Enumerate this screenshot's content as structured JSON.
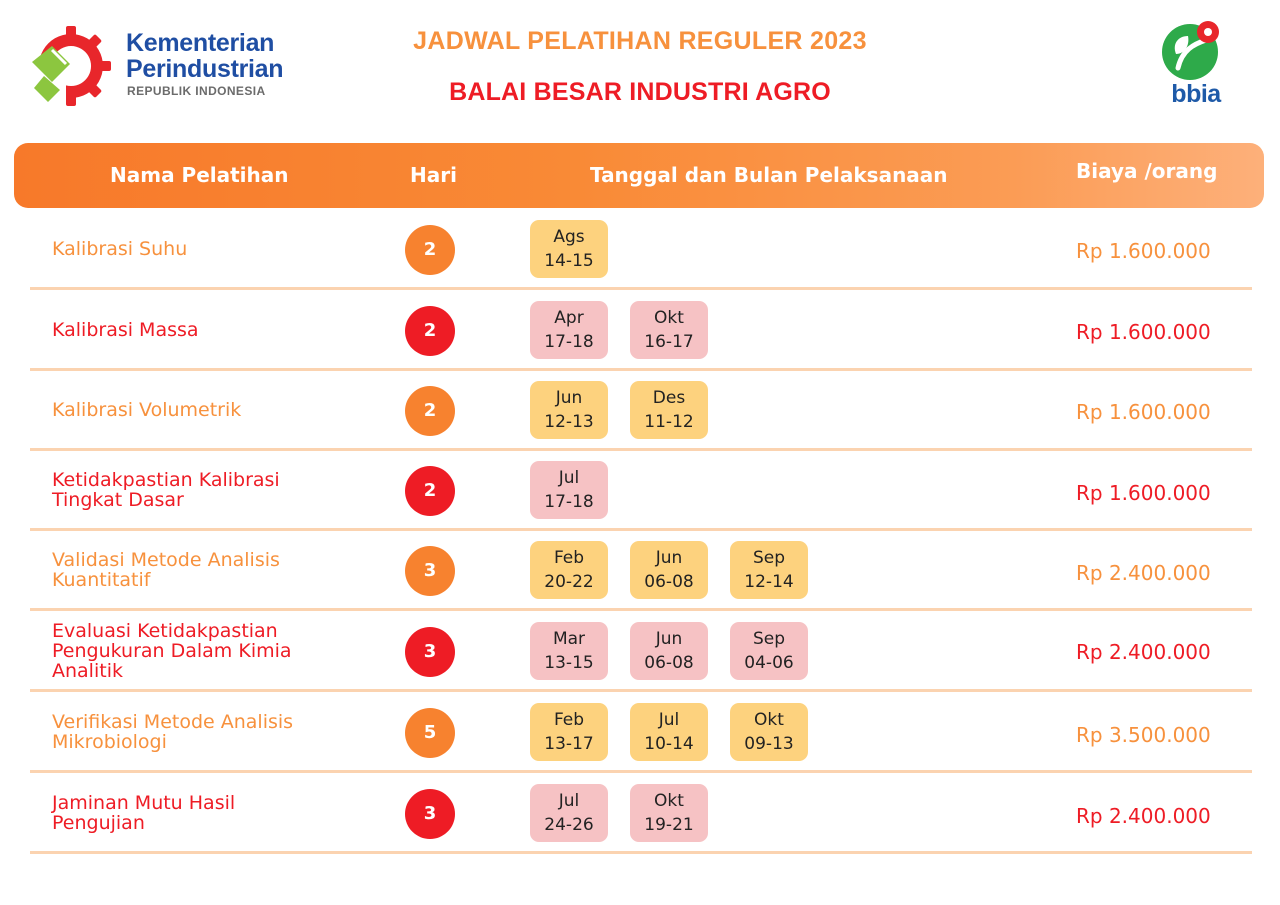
{
  "header": {
    "ministry_line1": "Kementerian",
    "ministry_line2": "Perindustrian",
    "ministry_line3": "REPUBLIK INDONESIA",
    "title": "JADWAL PELATIHAN REGULER 2023",
    "subtitle": "BALAI BESAR INDUSTRI AGRO",
    "right_logo_text": "bbia"
  },
  "colors": {
    "orange": "#f7913d",
    "red": "#ee1c25",
    "chip_orange": "#fdd27e",
    "chip_red": "#f6c2c4",
    "ministry_blue": "#1f4ea3"
  },
  "table": {
    "columns": [
      "Nama Pelatihan",
      "Hari",
      "Tanggal dan Bulan Pelaksanaan",
      "Biaya /orang"
    ],
    "rows": [
      {
        "name_lines": [
          "Kalibrasi Suhu"
        ],
        "days": "2",
        "style": "orange",
        "dates": [
          {
            "month": "Ags",
            "range": "14-15"
          }
        ],
        "price": "Rp 1.600.000"
      },
      {
        "name_lines": [
          "Kalibrasi Massa"
        ],
        "days": "2",
        "style": "red",
        "dates": [
          {
            "month": "Apr",
            "range": "17-18"
          },
          {
            "month": "Okt",
            "range": "16-17"
          }
        ],
        "price": "Rp 1.600.000"
      },
      {
        "name_lines": [
          "Kalibrasi Volumetrik"
        ],
        "days": "2",
        "style": "orange",
        "dates": [
          {
            "month": "Jun",
            "range": "12-13"
          },
          {
            "month": "Des",
            "range": "11-12"
          }
        ],
        "price": "Rp 1.600.000"
      },
      {
        "name_lines": [
          "Ketidakpastian Kalibrasi",
          "Tingkat Dasar"
        ],
        "days": "2",
        "style": "red",
        "dates": [
          {
            "month": "Jul",
            "range": "17-18"
          }
        ],
        "price": "Rp 1.600.000"
      },
      {
        "name_lines": [
          "Validasi Metode Analisis",
          "Kuantitatif"
        ],
        "days": "3",
        "style": "orange",
        "dates": [
          {
            "month": "Feb",
            "range": "20-22"
          },
          {
            "month": "Jun",
            "range": "06-08"
          },
          {
            "month": "Sep",
            "range": "12-14"
          }
        ],
        "price": "Rp 2.400.000"
      },
      {
        "name_lines": [
          "Evaluasi Ketidakpastian",
          "Pengukuran Dalam Kimia",
          "Analitik"
        ],
        "days": "3",
        "style": "red",
        "dates": [
          {
            "month": "Mar",
            "range": "13-15"
          },
          {
            "month": "Jun",
            "range": "06-08"
          },
          {
            "month": "Sep",
            "range": "04-06"
          }
        ],
        "price": "Rp 2.400.000"
      },
      {
        "name_lines": [
          "Verifikasi Metode Analisis",
          "Mikrobiologi"
        ],
        "days": "5",
        "style": "orange",
        "dates": [
          {
            "month": "Feb",
            "range": "13-17"
          },
          {
            "month": "Jul",
            "range": "10-14"
          },
          {
            "month": "Okt",
            "range": "09-13"
          }
        ],
        "price": "Rp 3.500.000"
      },
      {
        "name_lines": [
          "Jaminan Mutu Hasil",
          "Pengujian"
        ],
        "days": "3",
        "style": "red",
        "dates": [
          {
            "month": "Jul",
            "range": "24-26"
          },
          {
            "month": "Okt",
            "range": "19-21"
          }
        ],
        "price": "Rp 2.400.000"
      }
    ]
  }
}
